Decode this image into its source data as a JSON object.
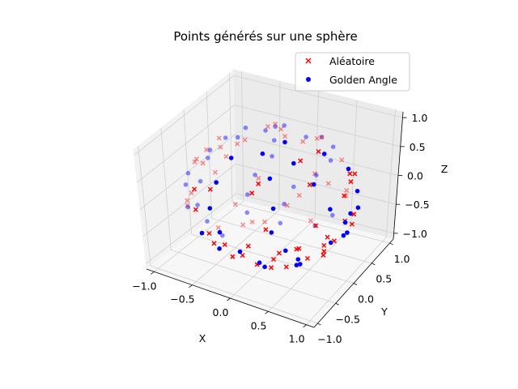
{
  "chart_data": {
    "type": "scatter",
    "projection": "3d",
    "title": "Points générés sur une sphère",
    "xlabel": "X",
    "ylabel": "Y",
    "zlabel": "Z",
    "xlim": [
      -1.1,
      1.1
    ],
    "ylim": [
      -1.1,
      1.1
    ],
    "zlim": [
      -1.1,
      1.1
    ],
    "xticks": [
      -1.0,
      -0.5,
      0.0,
      0.5,
      1.0
    ],
    "yticks": [
      -1.0,
      -0.5,
      0.0,
      0.5,
      1.0
    ],
    "zticks": [
      -1.0,
      -0.5,
      0.0,
      0.5,
      1.0
    ],
    "xtick_labels": [
      "−1.0",
      "−0.5",
      "0.0",
      "0.5",
      "1.0"
    ],
    "ytick_labels": [
      "−1.0",
      "−0.5",
      "0.0",
      "0.5",
      "1.0"
    ],
    "ztick_labels": [
      "−1.0",
      "−0.5",
      "0.0",
      "0.5",
      "1.0"
    ],
    "grid": true,
    "legend_position": "top-right",
    "series": [
      {
        "name": "Aléatoire",
        "marker": "x",
        "color": "#ff0000",
        "points": [
          [
            0.12,
            -0.78,
            0.61
          ],
          [
            -0.45,
            0.33,
            -0.83
          ],
          [
            0.88,
            0.21,
            0.43
          ],
          [
            -0.62,
            -0.71,
            0.33
          ],
          [
            0.05,
            0.97,
            -0.22
          ],
          [
            0.71,
            -0.52,
            -0.47
          ],
          [
            -0.91,
            0.12,
            0.39
          ],
          [
            0.34,
            0.41,
            0.85
          ],
          [
            -0.22,
            -0.35,
            -0.91
          ],
          [
            0.58,
            0.76,
            -0.29
          ],
          [
            -0.77,
            0.58,
            0.26
          ],
          [
            0.93,
            -0.28,
            -0.24
          ],
          [
            -0.14,
            -0.94,
            -0.31
          ],
          [
            0.42,
            -0.18,
            0.89
          ],
          [
            -0.53,
            -0.24,
            0.81
          ],
          [
            0.19,
            0.62,
            -0.76
          ],
          [
            -0.86,
            -0.46,
            -0.22
          ],
          [
            0.66,
            0.05,
            -0.75
          ],
          [
            -0.31,
            0.88,
            0.36
          ],
          [
            0.81,
            -0.56,
            0.17
          ],
          [
            -0.05,
            0.28,
            0.96
          ],
          [
            0.49,
            -0.83,
            -0.26
          ],
          [
            -0.69,
            0.36,
            -0.63
          ],
          [
            0.27,
            -0.57,
            -0.78
          ],
          [
            -0.96,
            -0.18,
            -0.21
          ],
          [
            0.74,
            0.63,
            0.23
          ],
          [
            -0.38,
            -0.79,
            0.48
          ],
          [
            0.09,
            -0.15,
            -0.98
          ],
          [
            -0.58,
            0.73,
            -0.36
          ],
          [
            0.97,
            0.12,
            -0.21
          ],
          [
            -0.24,
            0.51,
            0.83
          ],
          [
            0.55,
            0.36,
            -0.75
          ],
          [
            -0.82,
            -0.31,
            0.48
          ],
          [
            0.36,
            -0.92,
            0.16
          ],
          [
            -0.47,
            -0.58,
            -0.66
          ],
          [
            0.63,
            -0.37,
            0.68
          ],
          [
            -0.11,
            0.95,
            0.29
          ],
          [
            0.84,
            0.45,
            -0.31
          ],
          [
            -0.72,
            0.08,
            0.69
          ],
          [
            0.23,
            0.18,
            -0.96
          ],
          [
            -0.35,
            -0.91,
            -0.22
          ],
          [
            0.45,
            0.87,
            0.21
          ],
          [
            -0.93,
            0.33,
            -0.14
          ],
          [
            0.15,
            -0.68,
            0.72
          ],
          [
            -0.64,
            -0.45,
            0.62
          ],
          [
            0.78,
            -0.23,
            -0.58
          ],
          [
            -0.18,
            0.71,
            -0.68
          ],
          [
            0.31,
            0.59,
            0.74
          ],
          [
            -0.51,
            0.21,
            -0.83
          ],
          [
            0.68,
            -0.71,
            -0.18
          ],
          [
            -0.87,
            0.49,
            0.06
          ],
          [
            0.04,
            -0.48,
            -0.88
          ],
          [
            0.92,
            -0.05,
            0.38
          ],
          [
            -0.29,
            -0.12,
            0.95
          ],
          [
            0.57,
            0.79,
            -0.22
          ],
          [
            -0.74,
            -0.67,
            0.05
          ],
          [
            0.38,
            -0.39,
            -0.84
          ],
          [
            -0.08,
            0.83,
            -0.55
          ],
          [
            0.82,
            0.31,
            0.48
          ],
          [
            -0.41,
            0.65,
            0.64
          ],
          [
            0.17,
            -0.97,
            -0.18
          ],
          [
            -0.66,
            -0.12,
            -0.74
          ],
          [
            0.49,
            0.14,
            0.86
          ],
          [
            -0.95,
            -0.04,
            0.31
          ],
          [
            0.71,
            0.49,
            -0.5
          ],
          [
            -0.21,
            -0.62,
            -0.76
          ],
          [
            0.26,
            0.92,
            -0.29
          ],
          [
            -0.55,
            -0.83,
            0.07
          ],
          [
            0.87,
            -0.43,
            -0.24
          ],
          [
            -0.33,
            0.42,
            -0.84
          ]
        ]
      },
      {
        "name": "Golden Angle",
        "marker": "o",
        "color": "#0000ff",
        "points": [
          [
            0.14,
            0.0,
            0.99
          ],
          [
            -0.18,
            0.16,
            0.97
          ],
          [
            0.02,
            -0.31,
            0.95
          ],
          [
            0.26,
            0.29,
            0.93
          ],
          [
            -0.41,
            -0.06,
            0.91
          ],
          [
            0.38,
            -0.27,
            0.89
          ],
          [
            -0.11,
            0.48,
            0.87
          ],
          [
            -0.29,
            -0.45,
            0.85
          ],
          [
            0.55,
            0.17,
            0.82
          ],
          [
            -0.51,
            0.31,
            0.8
          ],
          [
            0.24,
            -0.58,
            0.78
          ],
          [
            0.31,
            0.6,
            0.74
          ],
          [
            -0.66,
            -0.24,
            0.71
          ],
          [
            0.66,
            -0.33,
            0.67
          ],
          [
            -0.34,
            0.7,
            0.63
          ],
          [
            -0.33,
            -0.74,
            0.59
          ],
          [
            0.78,
            0.35,
            0.52
          ],
          [
            -0.79,
            0.35,
            0.5
          ],
          [
            0.39,
            -0.8,
            0.46
          ],
          [
            0.35,
            0.83,
            0.43
          ],
          [
            -0.86,
            -0.4,
            0.32
          ],
          [
            0.88,
            -0.34,
            0.33
          ],
          [
            -0.44,
            0.86,
            0.26
          ],
          [
            -0.33,
            -0.91,
            0.24
          ],
          [
            0.92,
            0.33,
            0.2
          ],
          [
            -0.96,
            0.23,
            0.16
          ],
          [
            0.42,
            -0.9,
            0.12
          ],
          [
            0.26,
            0.96,
            0.08
          ],
          [
            -0.94,
            -0.33,
            0.04
          ],
          [
            0.99,
            -0.13,
            0.0
          ],
          [
            -0.48,
            0.88,
            -0.04
          ],
          [
            -0.18,
            -0.98,
            -0.08
          ],
          [
            0.92,
            0.38,
            -0.12
          ],
          [
            -0.98,
            0.07,
            -0.16
          ],
          [
            0.56,
            -0.81,
            -0.2
          ],
          [
            0.07,
            0.97,
            -0.24
          ],
          [
            -0.85,
            -0.47,
            -0.24
          ],
          [
            0.95,
            0.04,
            -0.31
          ],
          [
            -0.62,
            0.72,
            -0.31
          ],
          [
            0.05,
            -0.94,
            -0.35
          ],
          [
            0.76,
            0.53,
            -0.38
          ],
          [
            -0.9,
            -0.16,
            -0.41
          ],
          [
            0.64,
            -0.63,
            -0.44
          ],
          [
            -0.18,
            0.87,
            -0.46
          ],
          [
            -0.59,
            -0.64,
            -0.49
          ],
          [
            0.83,
            0.21,
            -0.52
          ],
          [
            -0.63,
            0.55,
            -0.55
          ],
          [
            0.23,
            -0.8,
            -0.56
          ],
          [
            0.46,
            0.66,
            -0.6
          ],
          [
            -0.76,
            -0.2,
            -0.62
          ],
          [
            0.6,
            -0.48,
            -0.64
          ],
          [
            -0.22,
            0.71,
            -0.67
          ],
          [
            -0.38,
            -0.62,
            -0.69
          ],
          [
            0.66,
            0.23,
            -0.72
          ],
          [
            -0.55,
            0.39,
            -0.74
          ],
          [
            0.21,
            -0.62,
            -0.76
          ],
          [
            0.28,
            0.56,
            -0.78
          ],
          [
            -0.57,
            -0.19,
            -0.8
          ],
          [
            0.47,
            -0.3,
            -0.83
          ],
          [
            -0.16,
            0.5,
            -0.85
          ]
        ]
      }
    ]
  }
}
